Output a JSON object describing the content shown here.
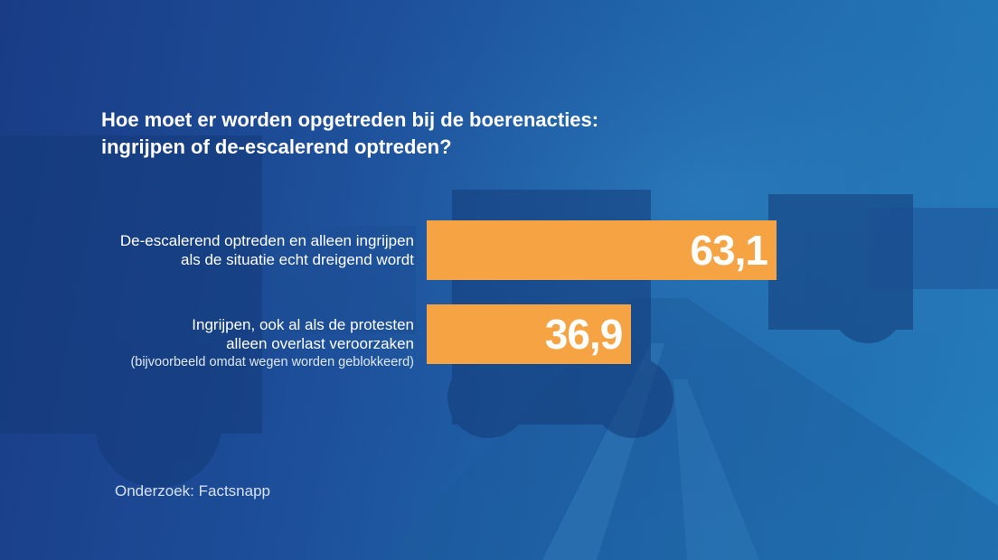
{
  "title": {
    "line1": "Hoe moet er worden opgetreden bij de boerenacties:",
    "line2": "ingrijpen of de-escalerend optreden?"
  },
  "chart_data": {
    "type": "bar",
    "orientation": "horizontal",
    "title": "Hoe moet er worden opgetreden bij de boerenacties: ingrijpen of de-escalerend optreden?",
    "categories": [
      {
        "lines": [
          "De-escalerend optreden en alleen ingrijpen",
          "als de situatie echt dreigend wordt"
        ],
        "note": ""
      },
      {
        "lines": [
          "Ingrijpen, ook al als de protesten",
          "alleen overlast veroorzaken"
        ],
        "note": "(bijvoorbeeld omdat wegen worden geblokkeerd)"
      }
    ],
    "values": [
      63.1,
      36.9
    ],
    "value_labels": [
      "63,1",
      "36,9"
    ],
    "bar_color": "#f6a343",
    "xlim": [
      0,
      100
    ],
    "grid": false,
    "legend": "none"
  },
  "source": "Onderzoek: Factsnapp"
}
